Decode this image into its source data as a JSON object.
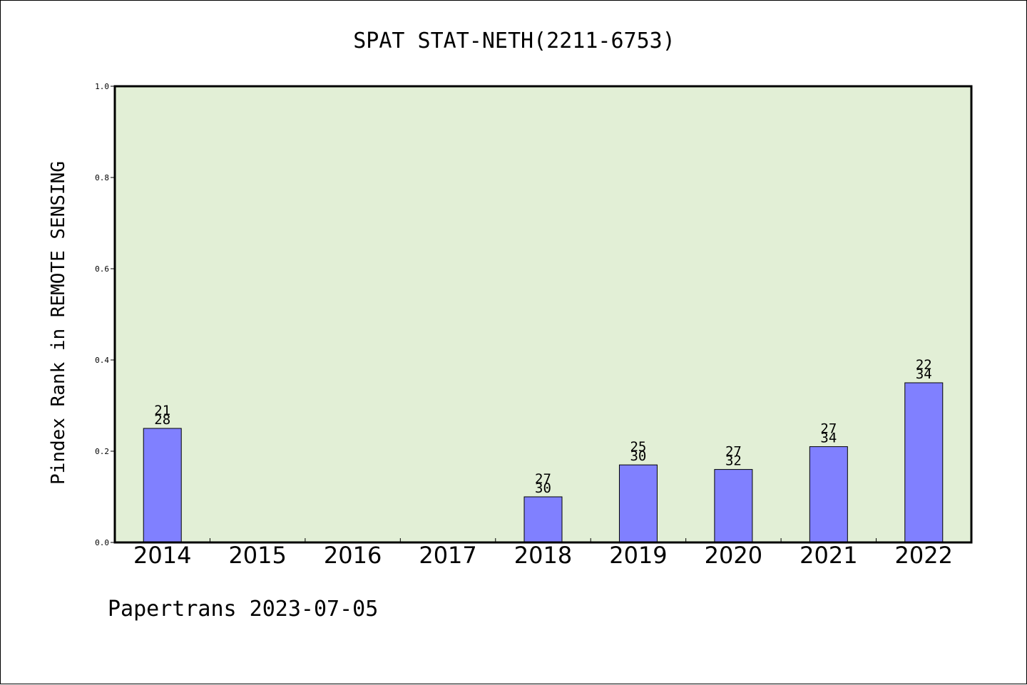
{
  "chart_data": {
    "type": "bar",
    "title": "SPAT STAT-NETH(2211-6753)",
    "ylabel": "Pindex Rank in REMOTE SENSING",
    "xlabel": "",
    "ylim": [
      0,
      1.0
    ],
    "yticks": [
      "0.0",
      "0.2",
      "0.4",
      "0.6",
      "0.8",
      "1.0"
    ],
    "categories": [
      "2014",
      "2015",
      "2016",
      "2017",
      "2018",
      "2019",
      "2020",
      "2021",
      "2022"
    ],
    "values": [
      0.25,
      null,
      null,
      null,
      0.1,
      0.17,
      0.16,
      0.21,
      0.35
    ],
    "annotations": [
      [
        "21",
        "28"
      ],
      null,
      null,
      null,
      [
        "27",
        "30"
      ],
      [
        "25",
        "30"
      ],
      [
        "27",
        "32"
      ],
      [
        "27",
        "34"
      ],
      [
        "22",
        "34"
      ]
    ],
    "grid": false,
    "colors": {
      "plot_background": "#e2efd6",
      "bar_fill": "#8080ff",
      "bar_stroke": "#000000"
    }
  },
  "footer": "Papertrans 2023-07-05"
}
